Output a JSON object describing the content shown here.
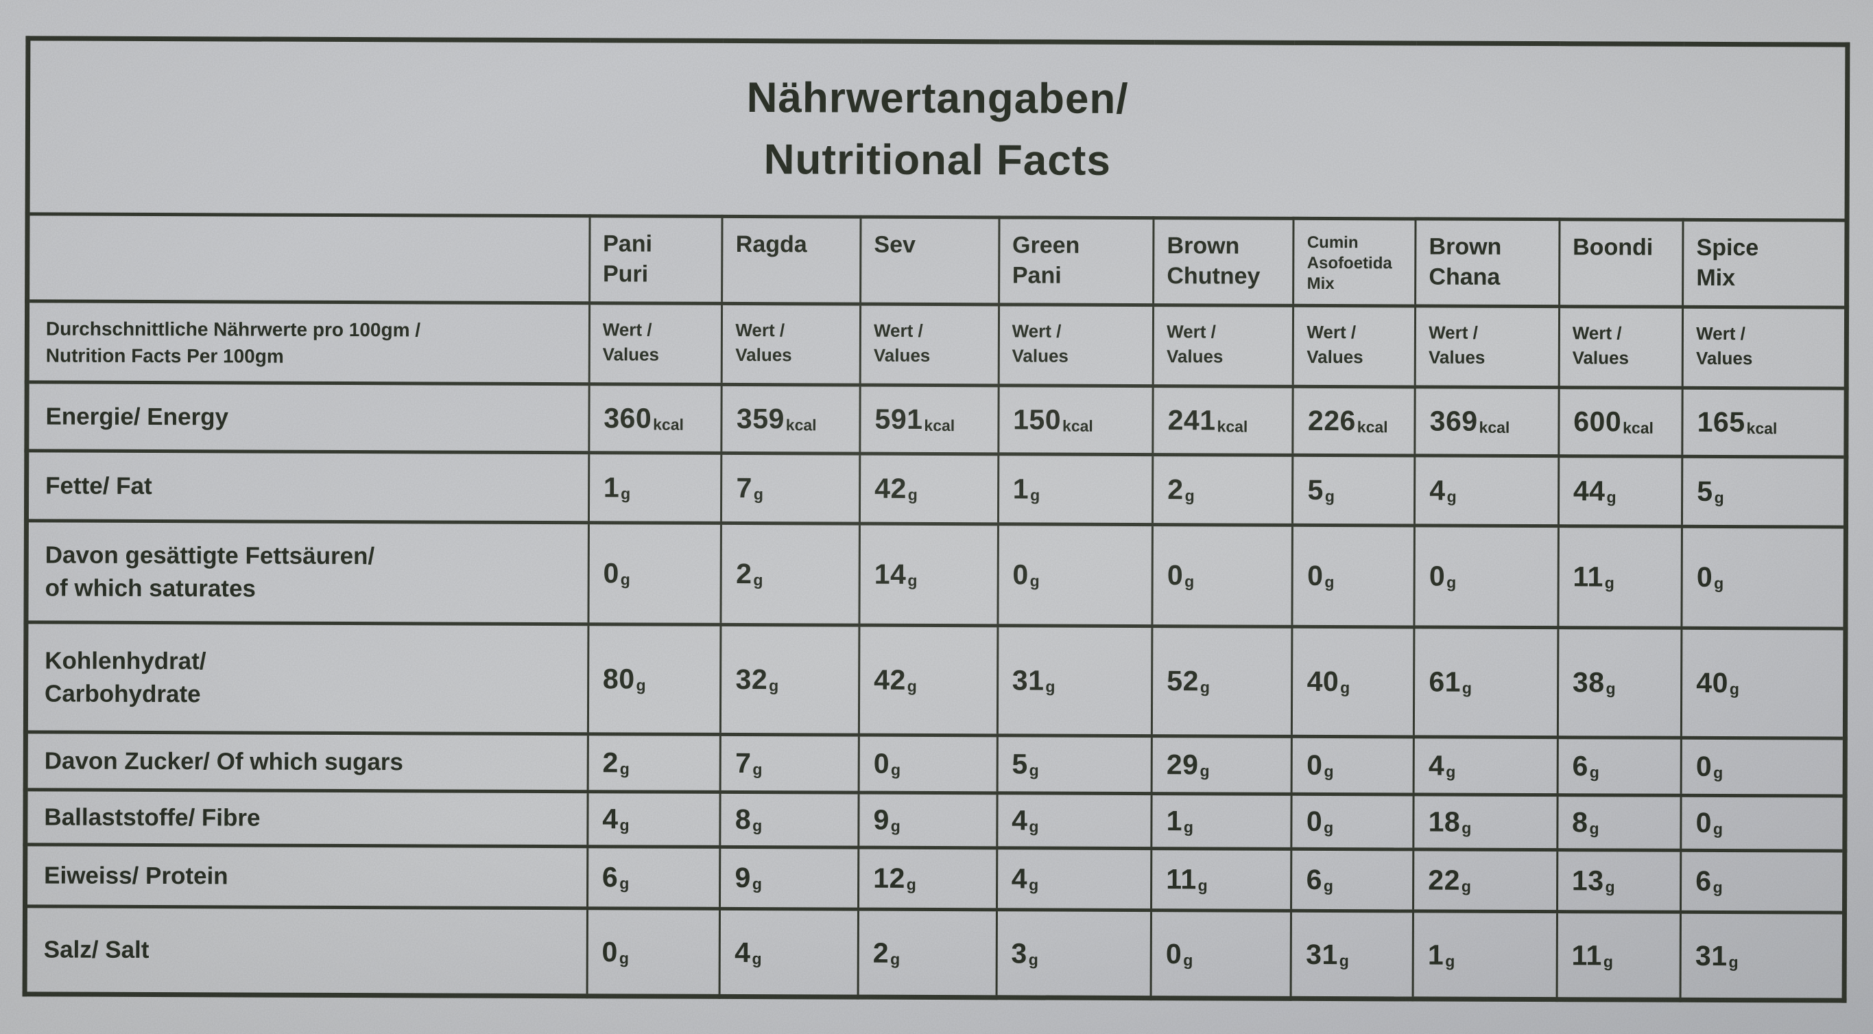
{
  "photo": {
    "paper_color": "#c8cacd",
    "ink_color": "#262c22"
  },
  "table": {
    "title": {
      "line1": "Nährwertangaben/",
      "line2": "Nutritional Facts"
    },
    "columns": [
      "Pani\nPuri",
      "Ragda",
      "Sev",
      "Green\nPani",
      "Brown\nChutney",
      "Cumin\nAsofoetida\nMix",
      "Brown\nChana",
      "Boondi",
      "Spice\nMix"
    ],
    "per_100g_row": {
      "label": "Durchschnittliche Nährwerte pro 100gm /\nNutrition Facts Per 100gm",
      "value_header": "Wert /\nValues"
    },
    "rows": [
      {
        "label": "Energie/ Energy",
        "unit": "kcal",
        "values": [
          360,
          359,
          591,
          150,
          241,
          226,
          369,
          600,
          165
        ]
      },
      {
        "label": "Fette/ Fat",
        "unit": "g",
        "values": [
          1,
          7,
          42,
          1,
          2,
          5,
          4,
          44,
          5
        ]
      },
      {
        "label": "Davon gesättigte Fettsäuren/\nof which saturates",
        "unit": "g",
        "values": [
          0,
          2,
          14,
          0,
          0,
          0,
          0,
          11,
          0
        ]
      },
      {
        "label": "Kohlenhydrat/\nCarbohydrate",
        "unit": "g",
        "values": [
          80,
          32,
          42,
          31,
          52,
          40,
          61,
          38,
          40
        ]
      },
      {
        "label": "Davon Zucker/ Of which sugars",
        "unit": "g",
        "values": [
          2,
          7,
          0,
          5,
          29,
          0,
          4,
          6,
          0
        ]
      },
      {
        "label": "Ballaststoffe/ Fibre",
        "unit": "g",
        "values": [
          4,
          8,
          9,
          4,
          1,
          0,
          18,
          8,
          0
        ]
      },
      {
        "label": "Eiweiss/ Protein",
        "unit": "g",
        "values": [
          6,
          9,
          12,
          4,
          11,
          6,
          22,
          13,
          6
        ]
      },
      {
        "label": "Salz/ Salt",
        "unit": "g",
        "values": [
          0,
          4,
          2,
          3,
          0,
          31,
          1,
          11,
          31
        ]
      }
    ]
  }
}
